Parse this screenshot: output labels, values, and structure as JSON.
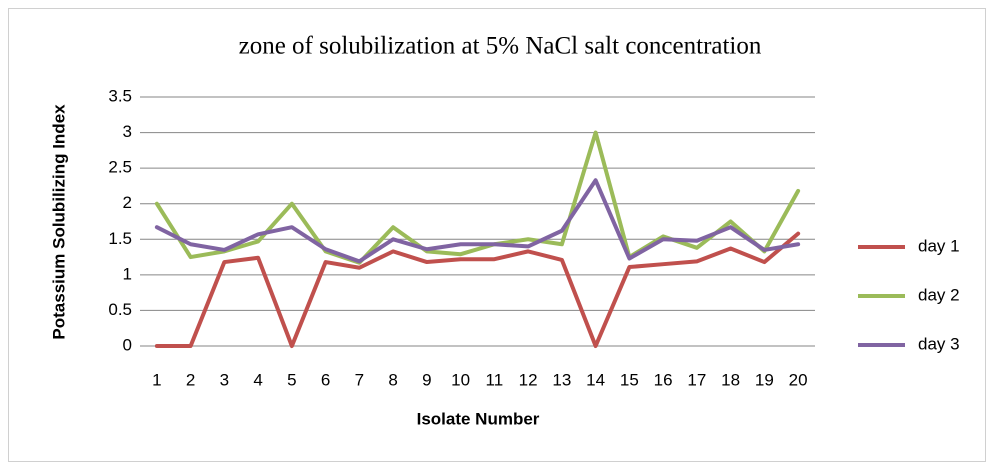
{
  "chart_data": {
    "type": "line",
    "title": "zone of solubilization at 5%  NaCl salt concentration",
    "x_label": "Isolate Number",
    "y_label": "Potassium Solubilizing Index",
    "categories": [
      "1",
      "2",
      "3",
      "4",
      "5",
      "6",
      "7",
      "8",
      "9",
      "10",
      "11",
      "12",
      "13",
      "14",
      "15",
      "16",
      "17",
      "18",
      "19",
      "20"
    ],
    "series": [
      {
        "name": "day 1",
        "color": "#c0504d",
        "values": [
          0,
          0,
          1.18,
          1.24,
          0,
          1.18,
          1.1,
          1.33,
          1.18,
          1.22,
          1.22,
          1.33,
          1.21,
          0,
          1.11,
          1.15,
          1.19,
          1.37,
          1.18,
          1.58
        ]
      },
      {
        "name": "day 2",
        "color": "#9bbb59",
        "values": [
          2.0,
          1.25,
          1.33,
          1.47,
          2.0,
          1.33,
          1.17,
          1.67,
          1.33,
          1.29,
          1.43,
          1.5,
          1.43,
          3.0,
          1.25,
          1.54,
          1.38,
          1.75,
          1.33,
          2.18
        ]
      },
      {
        "name": "day 3",
        "color": "#8064a2",
        "values": [
          1.67,
          1.43,
          1.35,
          1.57,
          1.67,
          1.36,
          1.19,
          1.5,
          1.36,
          1.43,
          1.43,
          1.4,
          1.62,
          2.33,
          1.23,
          1.5,
          1.48,
          1.67,
          1.35,
          1.43
        ]
      }
    ],
    "ylim": [
      0,
      3.5
    ],
    "yticks": [
      0,
      0.5,
      1,
      1.5,
      2,
      2.5,
      3,
      3.5
    ],
    "grid": true,
    "legend": "right"
  }
}
